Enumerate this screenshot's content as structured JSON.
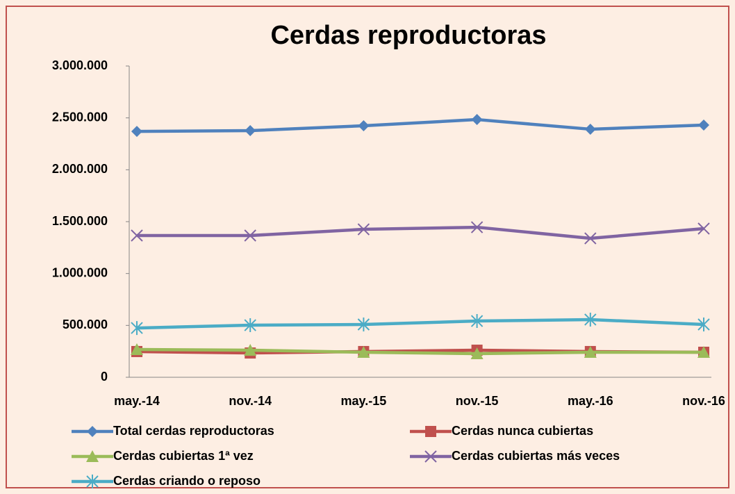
{
  "chart_data": {
    "type": "line",
    "title": "Cerdas reproductoras",
    "categories": [
      "may.-14",
      "nov.-14",
      "may.-15",
      "nov.-15",
      "may.-16",
      "nov.-16"
    ],
    "series": [
      {
        "name": "Total cerdas reproductoras",
        "color": "#4f81bd",
        "marker": "diamond",
        "values": [
          2370000,
          2377000,
          2424000,
          2484000,
          2391000,
          2431000
        ]
      },
      {
        "name": "Cerdas nunca cubiertas",
        "color": "#c0504d",
        "marker": "square",
        "values": [
          248000,
          234000,
          248000,
          261000,
          248000,
          241000
        ]
      },
      {
        "name": "Cerdas cubiertas 1ª vez",
        "color": "#9bbb59",
        "marker": "triangle",
        "values": [
          268000,
          261000,
          241000,
          228000,
          241000,
          241000
        ]
      },
      {
        "name": "Cerdas cubiertas más veces",
        "color": "#8064a2",
        "marker": "x",
        "values": [
          1366000,
          1366000,
          1426000,
          1446000,
          1339000,
          1433000
        ]
      },
      {
        "name": "Cerdas criando o reposo",
        "color": "#4bacc6",
        "marker": "star",
        "values": [
          475000,
          502000,
          509000,
          542000,
          556000,
          509000
        ]
      }
    ],
    "ylim": [
      0,
      3000000
    ],
    "yticks": [
      0,
      {
        "value": 500000,
        "label": "500.000"
      },
      {
        "value": 1000000,
        "label": "1.000.000"
      },
      {
        "value": 1500000,
        "label": "1.500.000"
      },
      {
        "value": 2000000,
        "label": "2.000.000"
      },
      {
        "value": 2500000,
        "label": "2.500.000"
      },
      {
        "value": 3000000,
        "label": "3.000.000"
      }
    ],
    "grid": false
  }
}
